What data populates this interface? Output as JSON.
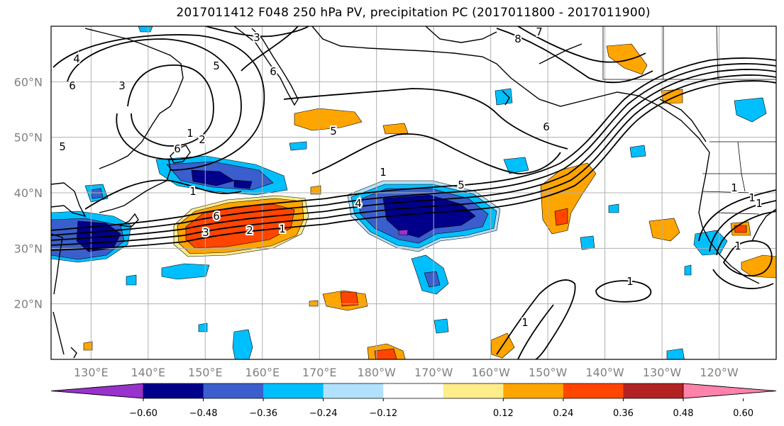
{
  "title": "2017011412 F048 250 hPa PV, precipitation PC (2017011800 - 2017011900)",
  "lat_labels": [
    "60°N",
    "50°N",
    "40°N",
    "30°N",
    "20°N"
  ],
  "lat_values": [
    60,
    50,
    40,
    30,
    20
  ],
  "lon_labels": [
    "130°E",
    "140°E",
    "150°E",
    "160°E",
    "170°E",
    "180°W",
    "170°W",
    "160°W",
    "150°W",
    "140°W",
    "130°W",
    "120°W"
  ],
  "lon_values": [
    130,
    140,
    150,
    160,
    170,
    180,
    190,
    200,
    210,
    220,
    230,
    240
  ],
  "extent": {
    "lon_min": 123,
    "lon_max": 250,
    "lat_min": 10,
    "lat_max": 70
  },
  "contour_labels": [
    "3",
    "4",
    "6",
    "3",
    "5",
    "6",
    "1",
    "2",
    "6",
    "5",
    "5",
    "1",
    "1",
    "6",
    "3",
    "2",
    "1",
    "5",
    "4",
    "1",
    "8",
    "7",
    "6",
    "1",
    "1",
    "1",
    "1",
    "1"
  ],
  "colorbar": {
    "colors": [
      "#9932cc",
      "#00008b",
      "#3a5fcd",
      "#00bfff",
      "#b0e2ff",
      "#ffffff",
      "#ffec8b",
      "#ffa500",
      "#ff4500",
      "#b22222",
      "#ff82ab"
    ],
    "tick_labels": [
      "−0.60",
      "−0.48",
      "−0.36",
      "−0.24",
      "−0.12",
      "0.12",
      "0.24",
      "0.36",
      "0.48",
      "0.60"
    ],
    "tick_values": [
      -0.6,
      -0.48,
      -0.36,
      -0.24,
      -0.12,
      0.12,
      0.24,
      0.36,
      0.48,
      0.6
    ]
  }
}
